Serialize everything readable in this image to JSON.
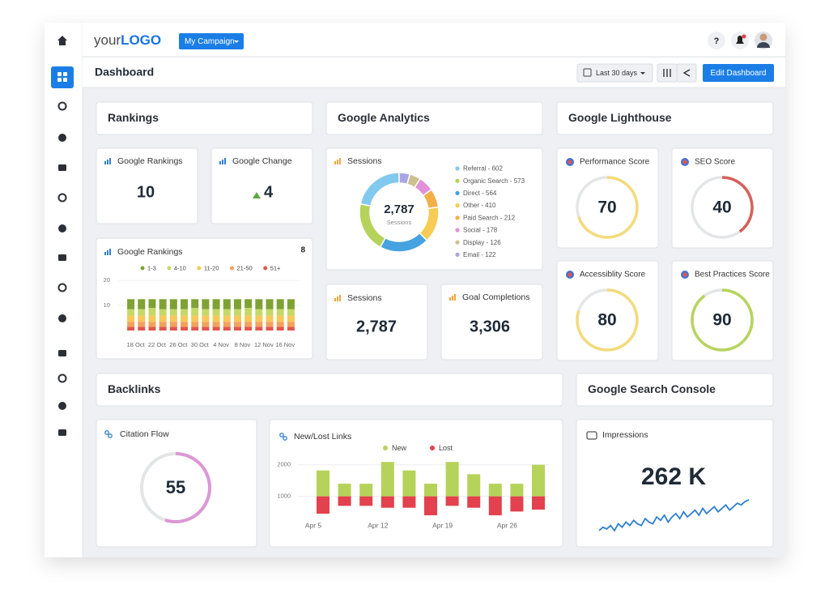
{
  "header": {
    "logo_prefix": "your",
    "logo_brand": "LOGO",
    "campaign": "My Campaign",
    "help": "?"
  },
  "toolbar": {
    "title": "Dashboard",
    "date_range": "Last 30 days",
    "edit": "Edit Dashboard"
  },
  "sections": {
    "rankings": "Rankings",
    "analytics": "Google Analytics",
    "lighthouse": "Google Lighthouse",
    "backlinks": "Backlinks",
    "search_console": "Google Search Console"
  },
  "widgets": {
    "google_rankings": {
      "label": "Google Rankings",
      "value": 10
    },
    "google_change": {
      "label": "Google Change",
      "value": 4
    },
    "rankings_chart": {
      "type": "bar",
      "stacked": true,
      "title": "Google Rankings",
      "badge": 8,
      "categories": [
        "18 Oct",
        null,
        "22 Oct",
        null,
        "26 Oct",
        null,
        "30 Oct",
        null,
        "4 Nov",
        null,
        "8 Nov",
        null,
        "12 Nov",
        null,
        "16 Nov",
        null
      ],
      "series": [
        {
          "name": "1-3",
          "color": "#7fa234",
          "values": [
            4,
            4,
            3.5,
            4,
            4,
            4,
            3.5,
            4,
            4,
            4,
            4,
            3.5,
            4,
            4,
            4,
            4
          ]
        },
        {
          "name": "4-10",
          "color": "#c4d966",
          "values": [
            2.5,
            2.5,
            3,
            2.5,
            2.5,
            2.5,
            3,
            2.5,
            2.5,
            2.5,
            2.5,
            3,
            2.5,
            2.5,
            2.5,
            2.5
          ]
        },
        {
          "name": "11-20",
          "color": "#f5c95a",
          "values": [
            2.5,
            2.5,
            2.5,
            2.5,
            2.5,
            2.5,
            2.5,
            2.5,
            2.5,
            2.5,
            2.5,
            2.5,
            2.5,
            2.5,
            2.5,
            2.5
          ]
        },
        {
          "name": "21-50",
          "color": "#f2a25c",
          "values": [
            2,
            2,
            2,
            2,
            2,
            2,
            2,
            2,
            2,
            2,
            2,
            2,
            2,
            2,
            2,
            2
          ]
        },
        {
          "name": "51+",
          "color": "#e2574c",
          "values": [
            1.5,
            1.5,
            1.5,
            1.5,
            1.5,
            1.5,
            1.5,
            1.5,
            1.5,
            1.5,
            1.5,
            1.5,
            1.5,
            1.5,
            1.5,
            1.5
          ]
        }
      ],
      "ylim": [
        0,
        21
      ],
      "yticks": [
        10,
        20
      ]
    },
    "sessions_chart": {
      "type": "donut",
      "title": "Sessions",
      "total": "2,787",
      "sub_label": "Sessions",
      "segments": [
        {
          "label": "Referral - 602",
          "value": 602,
          "color": "#82c9ef"
        },
        {
          "label": "Organic Search - 573",
          "value": 573,
          "color": "#b5d35a"
        },
        {
          "label": "Direct - 564",
          "value": 564,
          "color": "#46a2e0"
        },
        {
          "label": "Other - 410",
          "value": 410,
          "color": "#f6cc55"
        },
        {
          "label": "Paid Search - 212",
          "value": 212,
          "color": "#f2b049"
        },
        {
          "label": "Social - 178",
          "value": 178,
          "color": "#e391d6"
        },
        {
          "label": "Display - 126",
          "value": 126,
          "color": "#cdc08f"
        },
        {
          "label": "Email - 122",
          "value": 122,
          "color": "#a9a7e3"
        }
      ]
    },
    "sessions": {
      "label": "Sessions",
      "value": "2,787"
    },
    "goal_completions": {
      "label": "Goal Completions",
      "value": "3,306"
    },
    "lighthouse": {
      "type": "gauge",
      "max": 100,
      "gauges": [
        {
          "label": "Performance Score",
          "value": 70,
          "color": "#f3db7b"
        },
        {
          "label": "SEO Score",
          "value": 40,
          "color": "#d5625c"
        },
        {
          "label": "Accessiblity Score",
          "value": 80,
          "color": "#f3db7b"
        },
        {
          "label": "Best Practices Score",
          "value": 90,
          "color": "#b6d45c"
        }
      ]
    },
    "citation_flow": {
      "type": "gauge",
      "label": "Citation Flow",
      "value": 55,
      "max": 100,
      "color": "#dc97d5"
    },
    "links_chart": {
      "type": "bar",
      "title": "New/Lost Links",
      "categories": [
        "Apr 5",
        null,
        null,
        "Apr 12",
        null,
        null,
        "Apr 19",
        null,
        null,
        "Apr 26",
        null
      ],
      "series": [
        {
          "name": "New",
          "color": "#b5d35a",
          "values": [
            820,
            400,
            400,
            1090,
            820,
            400,
            1090,
            700,
            400,
            400,
            1000
          ]
        },
        {
          "name": "Lost",
          "color": "#e2414d",
          "values": [
            550,
            300,
            300,
            360,
            360,
            600,
            300,
            360,
            600,
            480,
            420
          ]
        }
      ],
      "ylim": [
        300,
        2300
      ],
      "yticks": [
        1000,
        2000
      ]
    },
    "impressions": {
      "type": "line",
      "label": "Impressions",
      "value": "262 K",
      "color": "#2f7fd1",
      "values": [
        2,
        4,
        3,
        5,
        2,
        6,
        4,
        7,
        5,
        8,
        6,
        5,
        9,
        7,
        6,
        10,
        8,
        11,
        7,
        10,
        12,
        9,
        13,
        10,
        12,
        14,
        11,
        15,
        12,
        14,
        16,
        13,
        15,
        17,
        14,
        16,
        18,
        17,
        19,
        20
      ]
    }
  }
}
